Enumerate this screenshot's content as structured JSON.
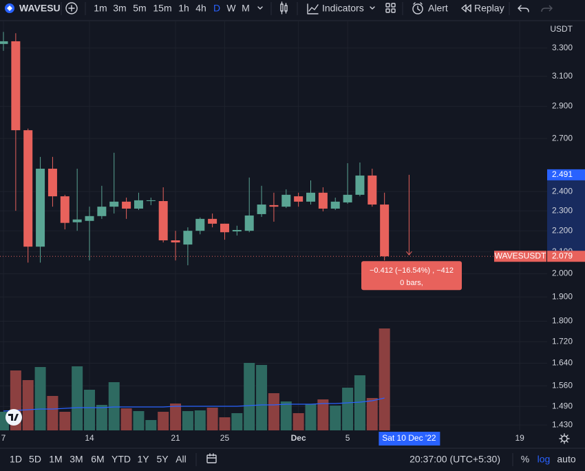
{
  "toolbar": {
    "symbol": "WAVESU",
    "intervals": [
      "1m",
      "3m",
      "5m",
      "15m",
      "1h",
      "4h",
      "D",
      "W",
      "M"
    ],
    "indicators": "Indicators",
    "alert": "Alert",
    "replay": "Replay"
  },
  "bottom_bar": {
    "ranges": [
      "1D",
      "5D",
      "1M",
      "3M",
      "6M",
      "YTD",
      "1Y",
      "5Y",
      "All"
    ],
    "time": "20:37:00 (UTC+5:30)",
    "percent": "%",
    "log": "log",
    "auto": "auto"
  },
  "chart_data": {
    "type": "candlestick",
    "currency": "USDT",
    "log_scale": true,
    "grid": true,
    "up_color": "#5aa594",
    "down_color": "#e8625c",
    "volume_up_color": "#2e6a61",
    "volume_down_color": "#8c4040",
    "volume_ma_color": "#2962ff",
    "categories": [
      "7",
      null,
      null,
      null,
      null,
      null,
      null,
      "14",
      null,
      null,
      null,
      null,
      null,
      null,
      "21",
      null,
      null,
      null,
      "25",
      null,
      null,
      null,
      null,
      null,
      "Dec",
      null,
      null,
      null,
      "5",
      null,
      null,
      null,
      null,
      null,
      null,
      null,
      null,
      null,
      null,
      null,
      null,
      null,
      "19"
    ],
    "open": [
      3.33,
      3.35,
      2.75,
      2.124,
      2.525,
      2.375,
      2.242,
      2.249,
      2.273,
      2.321,
      2.347,
      2.311,
      2.35,
      2.35,
      2.154,
      2.134,
      2.2,
      2.259,
      2.235,
      2.197,
      2.2,
      2.283,
      2.329,
      2.321,
      2.375,
      2.347,
      2.394,
      2.311,
      2.343,
      2.383,
      2.487,
      2.332,
      null,
      null,
      null,
      null,
      null,
      null,
      null,
      null,
      null,
      null,
      null
    ],
    "high": [
      3.42,
      3.41,
      2.76,
      2.592,
      2.592,
      2.383,
      2.525,
      2.321,
      2.431,
      2.616,
      2.368,
      2.394,
      2.368,
      2.423,
      2.2,
      2.217,
      2.266,
      2.286,
      2.235,
      2.225,
      2.476,
      2.431,
      2.394,
      2.412,
      2.394,
      2.46,
      2.423,
      2.368,
      2.556,
      2.56,
      2.525,
      2.394,
      null,
      null,
      null,
      null,
      null,
      null,
      null,
      null,
      null,
      null,
      null
    ],
    "low": [
      3.28,
      2.3,
      2.05,
      2.05,
      2.321,
      2.207,
      2.2,
      2.06,
      2.259,
      2.286,
      2.259,
      2.304,
      2.329,
      2.144,
      2.06,
      2.038,
      2.183,
      2.217,
      2.157,
      2.177,
      2.193,
      2.269,
      2.245,
      2.314,
      2.321,
      2.332,
      2.297,
      2.304,
      2.336,
      2.375,
      2.321,
      2.06,
      null,
      null,
      null,
      null,
      null,
      null,
      null,
      null,
      null,
      null,
      null
    ],
    "close": [
      3.35,
      2.75,
      2.124,
      2.525,
      2.375,
      2.239,
      2.256,
      2.273,
      2.321,
      2.347,
      2.311,
      2.354,
      2.354,
      2.154,
      2.144,
      2.2,
      2.259,
      2.235,
      2.193,
      2.204,
      2.276,
      2.332,
      2.321,
      2.383,
      2.347,
      2.394,
      2.311,
      2.347,
      2.383,
      2.487,
      2.332,
      2.079,
      null,
      null,
      null,
      null,
      null,
      null,
      null,
      null,
      null,
      null,
      null
    ],
    "volume": [
      27,
      87,
      73,
      92,
      50,
      27,
      93,
      59,
      37,
      70,
      32,
      28,
      15,
      27,
      39,
      28,
      29,
      33,
      19,
      25,
      98,
      95,
      54,
      42,
      25,
      38,
      45,
      36,
      62,
      80,
      47,
      148,
      null,
      null,
      null,
      null,
      null,
      null,
      null,
      null,
      null,
      null,
      null
    ],
    "volume_ma": [
      28,
      29,
      30,
      31,
      31,
      32,
      33,
      33,
      33,
      34,
      34,
      34,
      34,
      34,
      35,
      35,
      35,
      35,
      35,
      35,
      36,
      37,
      37,
      38,
      38,
      38,
      39,
      39,
      40,
      41,
      43,
      47,
      null,
      null,
      null,
      null,
      null,
      null,
      null,
      null,
      null,
      null,
      null
    ],
    "ylim": [
      1.413,
      3.48
    ],
    "yticks": [
      {
        "value": 3.3,
        "label": "3.300"
      },
      {
        "value": 3.1,
        "label": "3.100"
      },
      {
        "value": 2.9,
        "label": "2.900"
      },
      {
        "value": 2.7,
        "label": "2.700"
      },
      {
        "value": 2.4,
        "label": "2.400"
      },
      {
        "value": 2.3,
        "label": "2.300"
      },
      {
        "value": 2.2,
        "label": "2.200"
      },
      {
        "value": 2.1,
        "label": "2.100"
      },
      {
        "value": 2.0,
        "label": "2.000"
      },
      {
        "value": 1.9,
        "label": "1.900"
      },
      {
        "value": 1.8,
        "label": "1.800"
      },
      {
        "value": 1.72,
        "label": "1.720"
      },
      {
        "value": 1.64,
        "label": "1.640"
      },
      {
        "value": 1.56,
        "label": "1.560"
      },
      {
        "value": 1.49,
        "label": "1.490"
      },
      {
        "value": 1.43,
        "label": "1.430"
      }
    ],
    "crosshair_price": 2.491,
    "last_price": 2.079,
    "last_price_symbol": "WAVESUSDT",
    "crosshair_date": "Sat 10 Dec '22",
    "measure_label": "−0.412 (−16.54%) , −412",
    "measure_bars": "0 bars,"
  }
}
